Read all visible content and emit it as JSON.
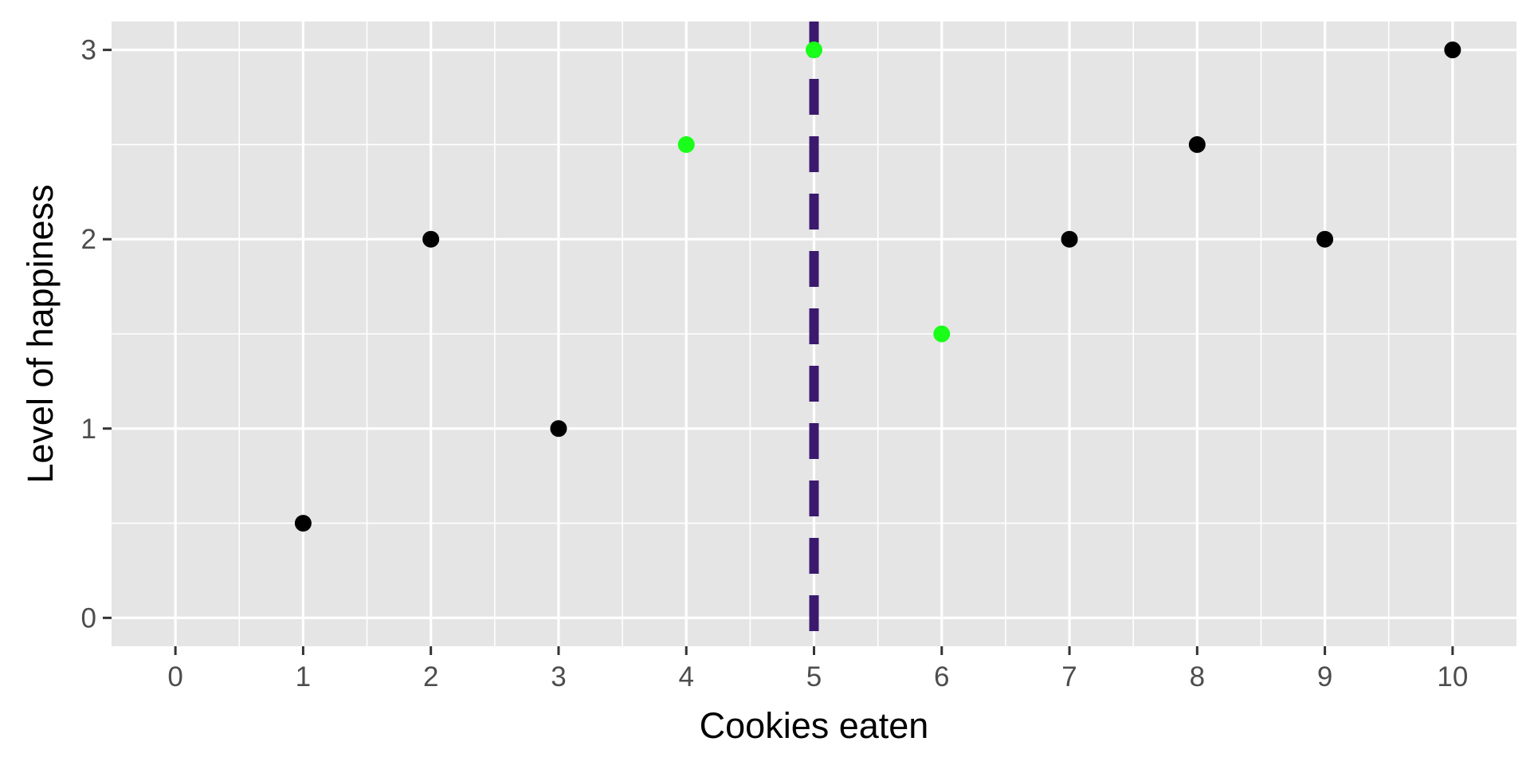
{
  "chart_data": {
    "type": "scatter",
    "title": "",
    "xlabel": "Cookies eaten",
    "ylabel": "Level of happiness",
    "xlim": [
      -0.5,
      10.5
    ],
    "ylim": [
      -0.15,
      3.15
    ],
    "x_ticks": [
      0,
      1,
      2,
      3,
      4,
      5,
      6,
      7,
      8,
      9,
      10
    ],
    "x_tick_labels": [
      "0",
      "1",
      "2",
      "3",
      "4",
      "5",
      "6",
      "7",
      "8",
      "9",
      "10"
    ],
    "y_ticks": [
      0,
      1,
      2,
      3
    ],
    "y_tick_labels": [
      "0",
      "1",
      "2",
      "3"
    ],
    "grid": true,
    "background_color": "#e5e5e5",
    "grid_color": "#ffffff",
    "points": [
      {
        "x": 1,
        "y": 0.5,
        "color": "#000000"
      },
      {
        "x": 2,
        "y": 2.0,
        "color": "#000000"
      },
      {
        "x": 3,
        "y": 1.0,
        "color": "#000000"
      },
      {
        "x": 4,
        "y": 2.5,
        "color": "#1aff1a"
      },
      {
        "x": 5,
        "y": 3.0,
        "color": "#1aff1a"
      },
      {
        "x": 6,
        "y": 1.5,
        "color": "#1aff1a"
      },
      {
        "x": 7,
        "y": 2.0,
        "color": "#000000"
      },
      {
        "x": 8,
        "y": 2.5,
        "color": "#000000"
      },
      {
        "x": 9,
        "y": 2.0,
        "color": "#000000"
      },
      {
        "x": 10,
        "y": 3.0,
        "color": "#000000"
      }
    ],
    "vline": {
      "x": 5,
      "color": "#3b1a6e",
      "style": "dashed"
    }
  }
}
